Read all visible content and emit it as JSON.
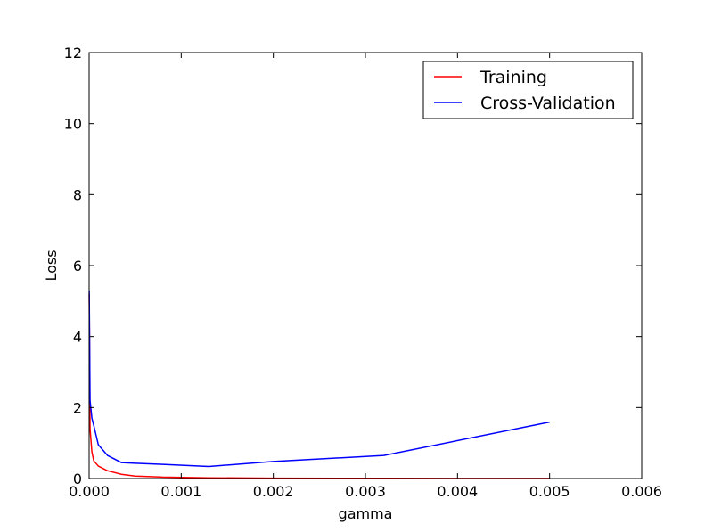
{
  "chart_data": {
    "type": "line",
    "xlabel": "gamma",
    "ylabel": "Loss",
    "xlim": [
      0.0,
      0.006
    ],
    "ylim": [
      0,
      12
    ],
    "x_ticks": [
      "0.000",
      "0.001",
      "0.002",
      "0.003",
      "0.004",
      "0.005",
      "0.006"
    ],
    "y_ticks": [
      "0",
      "2",
      "4",
      "6",
      "8",
      "10",
      "12"
    ],
    "grid": false,
    "legend_position": "top-right",
    "series": [
      {
        "name": "Training",
        "color": "#ff0000",
        "x": [
          1e-06,
          1e-05,
          3e-05,
          5e-05,
          0.0001,
          0.0002,
          0.00035,
          0.0005,
          0.0008,
          0.0013,
          0.002,
          0.0032,
          0.005
        ],
        "y": [
          5.2,
          1.4,
          0.75,
          0.5,
          0.35,
          0.22,
          0.12,
          0.07,
          0.04,
          0.02,
          0.01,
          0.005,
          0.003
        ]
      },
      {
        "name": "Cross-Validation",
        "color": "#0000ff",
        "x": [
          1e-06,
          1e-05,
          3e-05,
          5e-05,
          0.0001,
          0.0002,
          0.00035,
          0.0005,
          0.0008,
          0.0013,
          0.002,
          0.0032,
          0.005
        ],
        "y": [
          5.3,
          2.2,
          1.7,
          1.5,
          0.95,
          0.65,
          0.45,
          0.43,
          0.4,
          0.34,
          0.48,
          0.65,
          1.59
        ]
      }
    ]
  }
}
